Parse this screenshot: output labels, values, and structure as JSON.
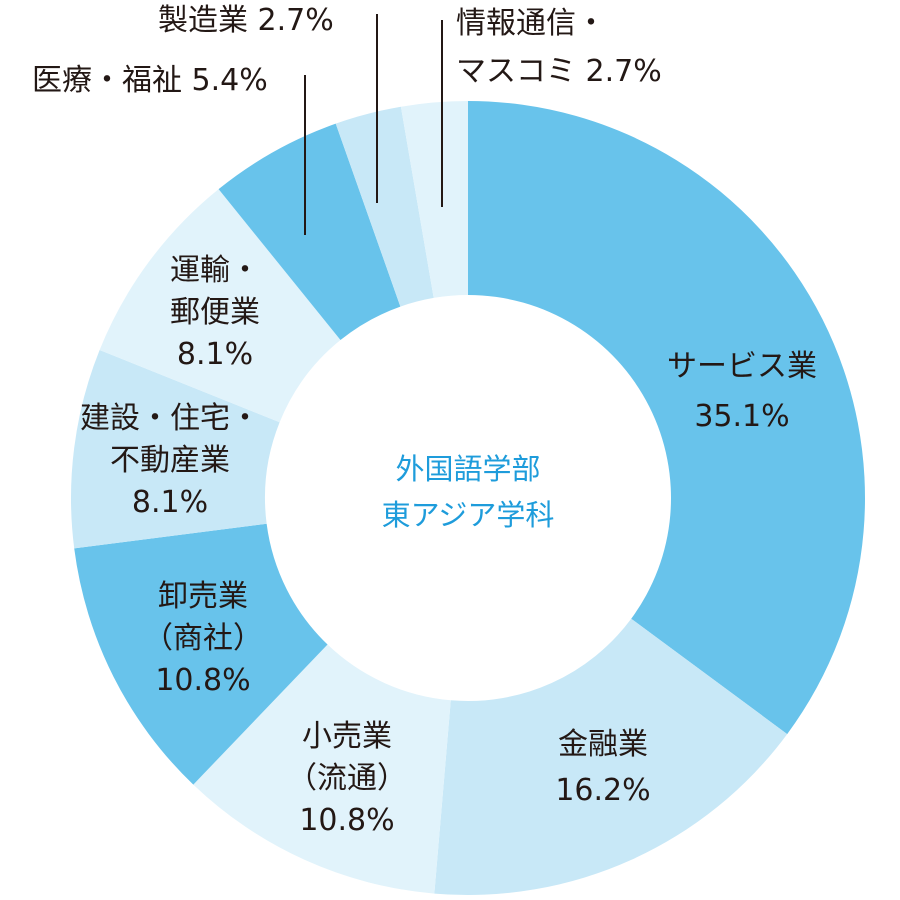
{
  "chart_data": {
    "type": "pie",
    "variant": "donut",
    "title": "外国語学部 東アジア学科",
    "center_label": [
      "外国語学部",
      "東アジア学科"
    ],
    "start_angle_deg": 0,
    "direction": "clockwise",
    "categories": [
      "サービス業",
      "金融業",
      "小売業（流通）",
      "卸売業（商社）",
      "建設・住宅・不動産業",
      "運輸・郵便業",
      "医療・福祉",
      "製造業",
      "情報通信・マスコミ"
    ],
    "values": [
      35.1,
      16.2,
      10.8,
      10.8,
      8.1,
      8.1,
      5.4,
      2.7,
      2.7
    ],
    "unit": "%",
    "colors": [
      "#68C3EB",
      "#C8E8F7",
      "#E1F3FB",
      "#68C3EB",
      "#C8E8F7",
      "#E1F3FB",
      "#68C3EB",
      "#C8E8F7",
      "#E1F3FB"
    ]
  },
  "labels": {
    "service": {
      "line1": "サービス業",
      "value": "35.1%"
    },
    "finance": {
      "line1": "金融業",
      "value": "16.2%"
    },
    "retail": {
      "line1": "小売業",
      "line2": "（流通）",
      "value": "10.8%"
    },
    "wholesale": {
      "line1": "卸売業",
      "line2": "（商社）",
      "value": "10.8%"
    },
    "construction": {
      "line1": "建設・住宅・",
      "line2": "不動産業",
      "value": "8.1%"
    },
    "transport": {
      "line1": "運輸・",
      "line2": "郵便業",
      "value": "8.1%"
    },
    "medical": {
      "text": "医療・福祉 5.4%"
    },
    "manufacturing": {
      "text": "製造業 2.7%"
    },
    "it_media": {
      "line1": "情報通信・",
      "line2": "マスコミ 2.7%"
    }
  },
  "center": {
    "line1": "外国語学部",
    "line2": "東アジア学科"
  }
}
